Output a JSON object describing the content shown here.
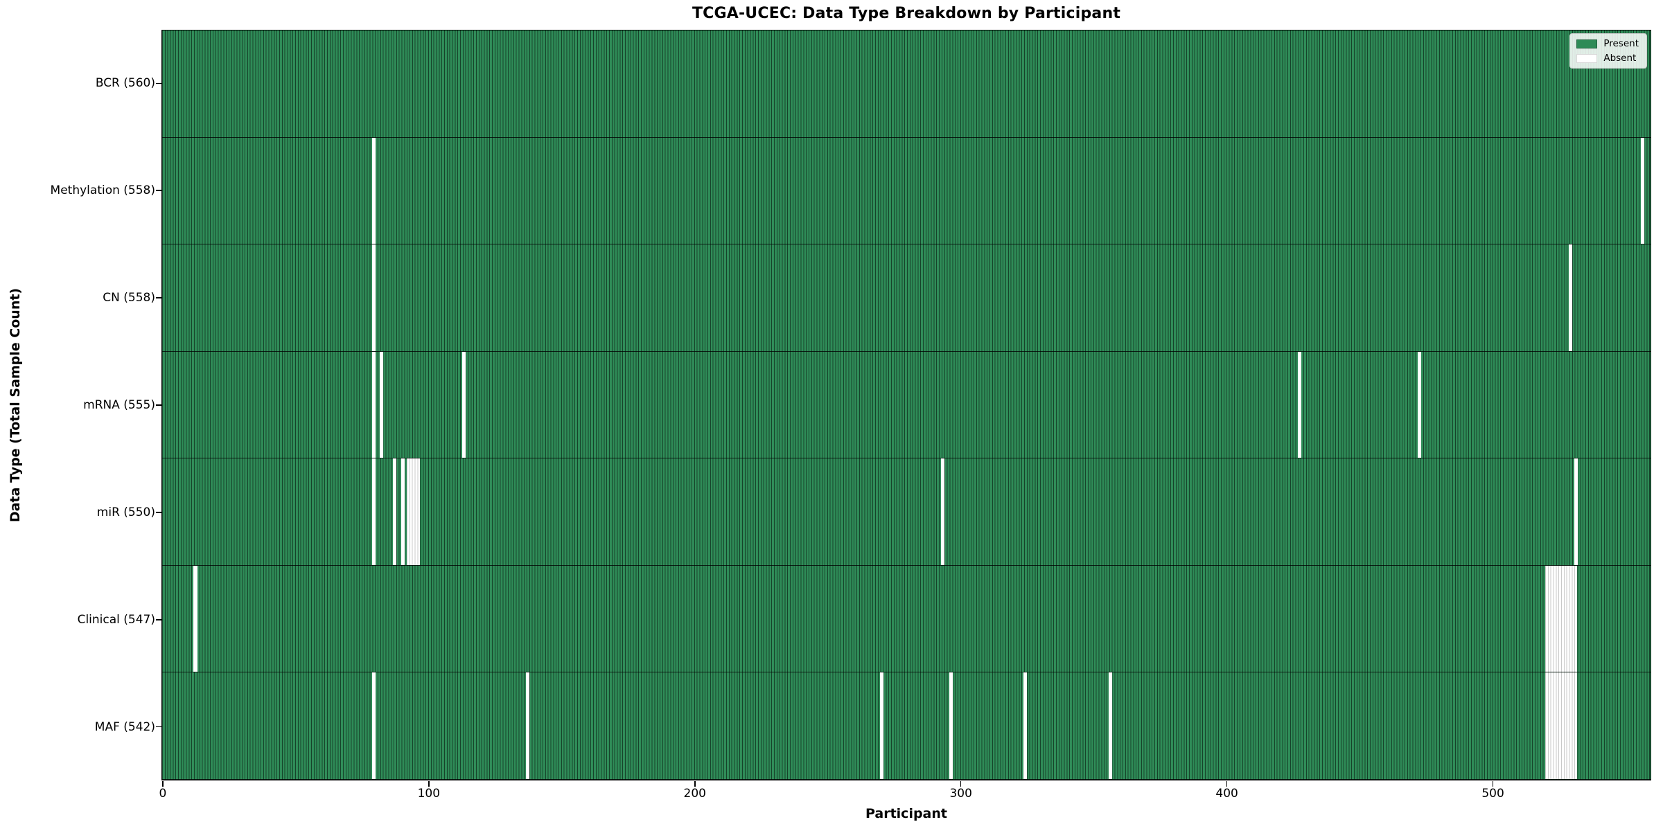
{
  "chart_data": {
    "type": "heatmap",
    "title": "TCGA-UCEC: Data Type Breakdown by Participant",
    "xlabel": "Participant",
    "ylabel": "Data Type (Total Sample Count)",
    "x_ticks": [
      0,
      100,
      200,
      300,
      400,
      500
    ],
    "n_participants": 560,
    "x_range": [
      -0.5,
      559.5
    ],
    "grid": false,
    "present_color": "#2e8b57",
    "absent_color": "#ffffff",
    "legend": {
      "position": "upper right",
      "entries": [
        {
          "label": "Present",
          "color": "#2e8b57"
        },
        {
          "label": "Absent",
          "color": "#ffffff"
        }
      ]
    },
    "rows": [
      {
        "label": "BCR (560)",
        "data_type": "BCR",
        "present_count": 560,
        "absent_participants": []
      },
      {
        "label": "Methylation (558)",
        "data_type": "Methylation",
        "present_count": 558,
        "absent_participants": [
          79,
          556
        ]
      },
      {
        "label": "CN (558)",
        "data_type": "CN",
        "present_count": 558,
        "absent_participants": [
          79,
          529
        ]
      },
      {
        "label": "mRNA (555)",
        "data_type": "mRNA",
        "present_count": 555,
        "absent_participants": [
          79,
          82,
          113,
          427,
          472
        ]
      },
      {
        "label": "miR (550)",
        "data_type": "miR",
        "present_count": 550,
        "absent_participants": [
          79,
          87,
          90,
          92,
          93,
          94,
          95,
          96,
          293,
          531
        ]
      },
      {
        "label": "Clinical (547)",
        "data_type": "Clinical",
        "present_count": 547,
        "absent_participants": [
          12,
          520,
          521,
          522,
          523,
          524,
          525,
          526,
          527,
          528,
          529,
          530,
          531
        ]
      },
      {
        "label": "MAF (542)",
        "data_type": "MAF",
        "present_count": 542,
        "absent_participants": [
          79,
          137,
          270,
          296,
          324,
          356,
          520,
          521,
          522,
          523,
          524,
          525,
          526,
          527,
          528,
          529,
          530,
          531
        ]
      }
    ]
  }
}
